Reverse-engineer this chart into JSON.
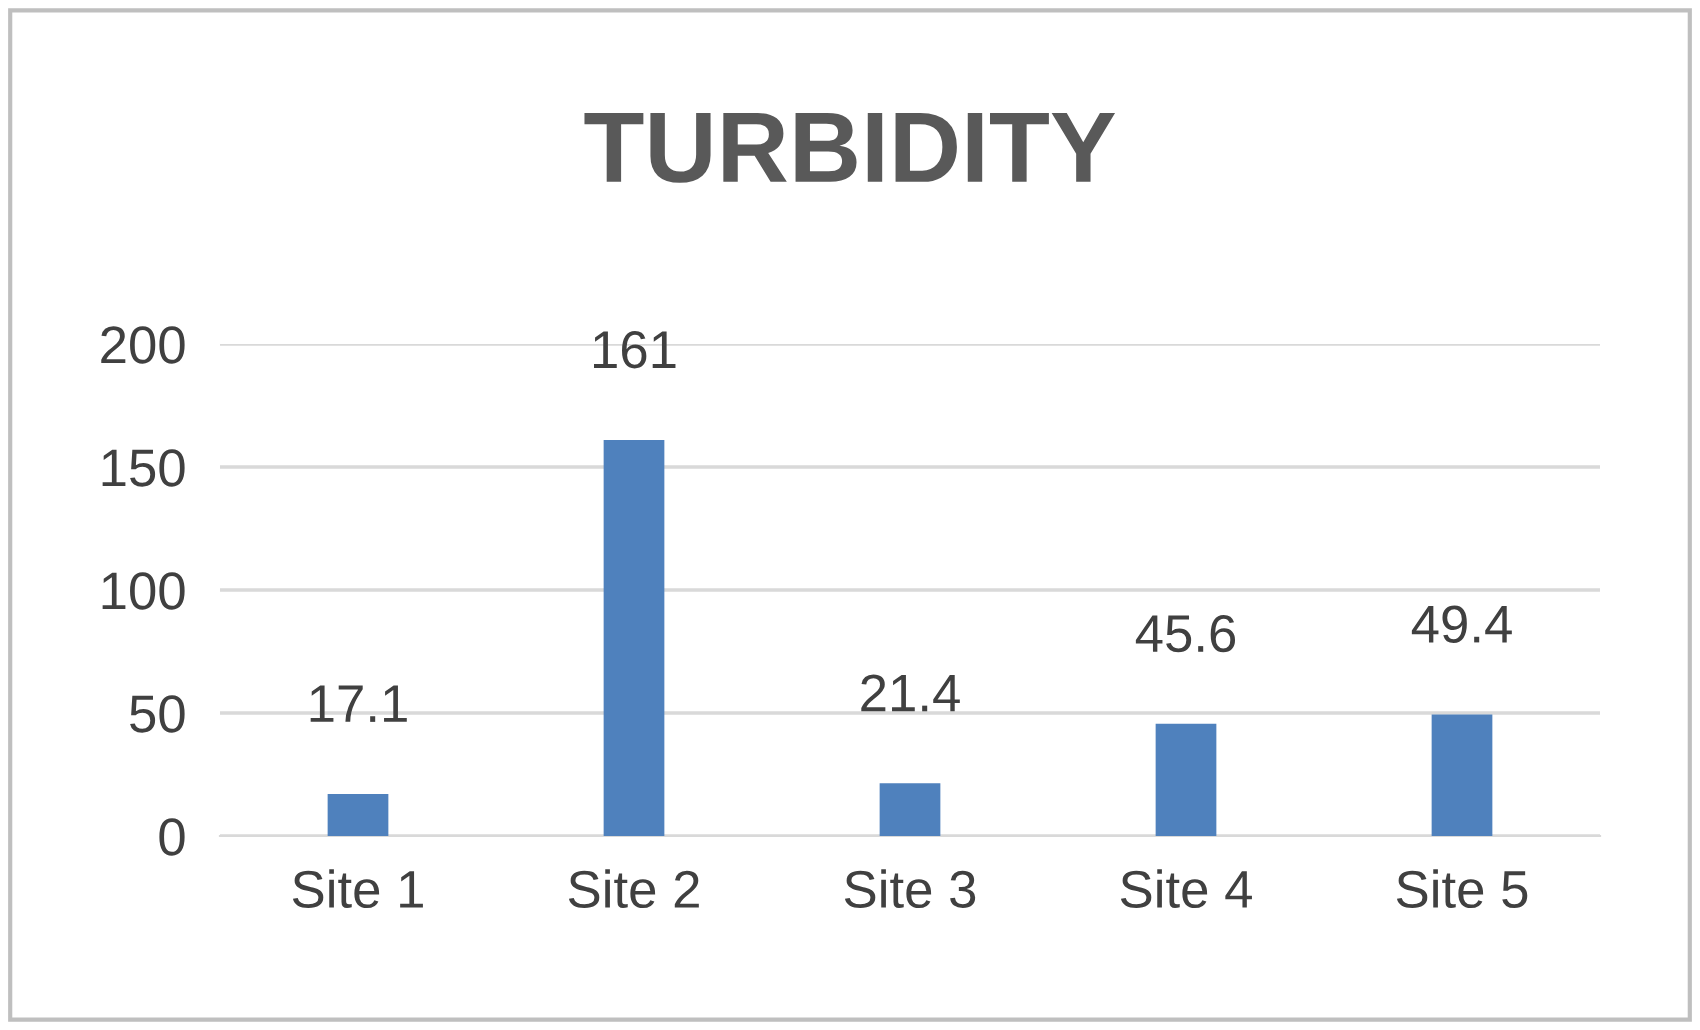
{
  "chart_data": {
    "type": "bar",
    "title": "TURBIDITY",
    "categories": [
      "Site 1",
      "Site 2",
      "Site 3",
      "Site 4",
      "Site 5"
    ],
    "values": [
      17.1,
      161,
      21.4,
      45.6,
      49.4
    ],
    "color": "#4f81bd",
    "ylim": [
      0,
      200
    ],
    "yticks": [
      0,
      50,
      100,
      150,
      200
    ],
    "grid": "y",
    "data_labels": true
  }
}
